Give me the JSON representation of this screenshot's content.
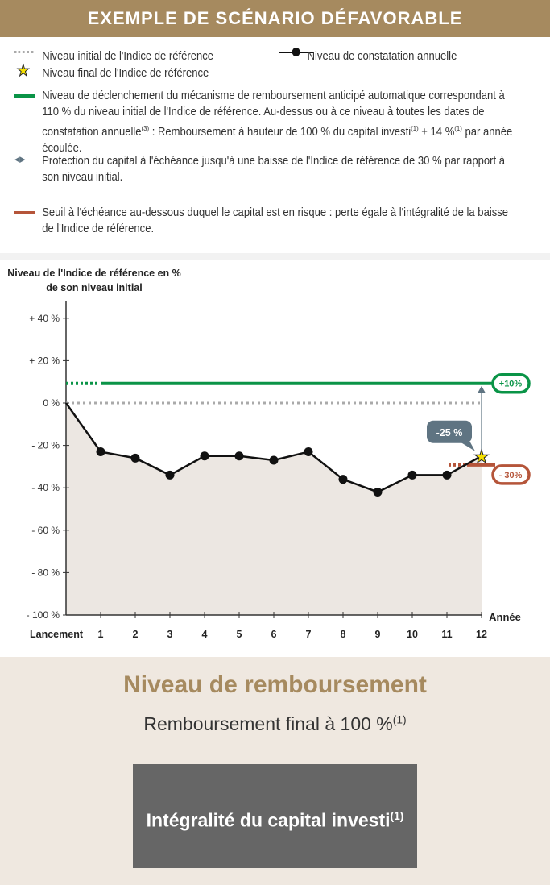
{
  "header": {
    "title": "EXEMPLE DE SCÉNARIO DÉFAVORABLE"
  },
  "legend": {
    "initial": "Niveau initial de l'Indice de référence",
    "annual": "Niveau de constatation annuelle",
    "final": "Niveau final de l'Indice de référence",
    "trigger": "Niveau de déclenchement du mécanisme de remboursement anticipé automatique correspondant à 110 % du niveau initial de l'Indice de référence. Au-dessus ou à ce niveau à toutes les dates de constatation annuelle",
    "trigger_sup": "(3)",
    "trigger_2": " : Remboursement à hauteur de 100 % du capital investi",
    "trigger_sup2": "(1)",
    "trigger_3": " + 14 %",
    "trigger_sup3": "(1)",
    "trigger_4": " par année écoulée.",
    "protection": "Protection du capital à l'échéance jusqu'à une baisse de l'Indice de référence de 30 % par rapport à son niveau initial.",
    "threshold": "Seuil à l'échéance au-dessous duquel le capital est en risque : perte égale à l'intégralité de la baisse de l'Indice de référence."
  },
  "chart_data": {
    "type": "line",
    "title": "Niveau de l'Indice de référence en % de son niveau initial",
    "title_line1": "Niveau de l'Indice de référence en %",
    "title_line2": "de son niveau initial",
    "xlabel": "Année",
    "categories": [
      "Lancement",
      "1",
      "2",
      "3",
      "4",
      "5",
      "6",
      "7",
      "8",
      "9",
      "10",
      "11",
      "12"
    ],
    "values": [
      0,
      -23,
      -26,
      -34,
      -25,
      -25,
      -27,
      -23,
      -36,
      -42,
      -34,
      -34,
      -25
    ],
    "yticks": [
      40,
      20,
      0,
      -20,
      -40,
      -60,
      -80,
      -100
    ],
    "ytick_labels": [
      "+ 40 %",
      "+ 20 %",
      "0 %",
      "- 20 %",
      "- 40 %",
      "- 60 %",
      "- 80 %",
      "- 100 %"
    ],
    "ylim": [
      -100,
      48
    ],
    "trigger_level": 10,
    "trigger_label": "+10%",
    "barrier_level": -30,
    "barrier_label": "- 30%",
    "final_label": "-25 %",
    "colors": {
      "trigger": "#0a9447",
      "barrier": "#b5553a",
      "arrow": "#5f7482",
      "initial": "#aaaaaa",
      "fill": "#ece7e2"
    }
  },
  "result": {
    "title": "Niveau de remboursement",
    "subtitle": "Remboursement final à 100 %",
    "subtitle_sup": "(1)",
    "box": "Intégralité du capital investi",
    "box_sup": "(1)"
  }
}
